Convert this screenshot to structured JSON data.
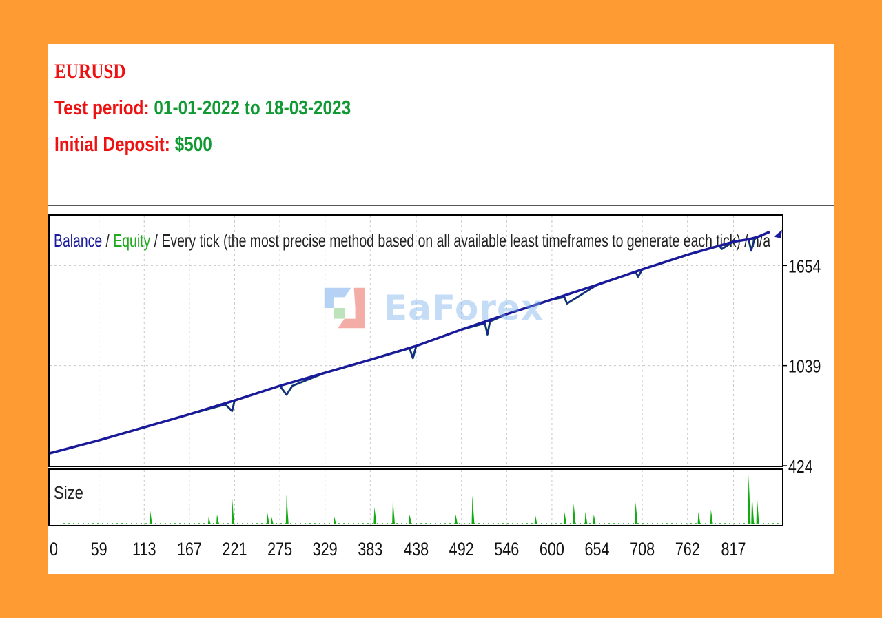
{
  "header": {
    "symbol": "EURUSD",
    "period_label": "Test period:",
    "period_value": "01-01-2022 to 18-03-2023",
    "deposit_label": "Initial Deposit:",
    "deposit_value": "$500"
  },
  "watermark": {
    "text": "EaForex"
  },
  "colors": {
    "background": "#ff9b33",
    "balance": "#1a1a9a",
    "equity": "#22aa22",
    "size": "#11aa11"
  },
  "chart_data": {
    "type": "line",
    "legend": {
      "balance": "Balance",
      "separator1": " / ",
      "equity": "Equity",
      "rest": " / Every tick (the most precise method based on all available least timeframes to generate each tick) / n/a"
    },
    "size_label": "Size",
    "x_ticks": [
      "0",
      "59",
      "113",
      "167",
      "221",
      "275",
      "329",
      "383",
      "438",
      "492",
      "546",
      "600",
      "654",
      "708",
      "762",
      "817"
    ],
    "y_ticks": [
      "424",
      "1039",
      "1654"
    ],
    "xlim": [
      0,
      875
    ],
    "ylim": [
      424,
      1960
    ],
    "grid": true,
    "series": [
      {
        "name": "Balance",
        "x": [
          0,
          59,
          113,
          167,
          221,
          275,
          329,
          383,
          438,
          492,
          546,
          600,
          654,
          708,
          762,
          817,
          835,
          845,
          860
        ],
        "values": [
          500,
          580,
          660,
          740,
          825,
          915,
          995,
          1075,
          1160,
          1260,
          1355,
          1445,
          1535,
          1630,
          1720,
          1800,
          1815,
          1828,
          1860
        ]
      },
      {
        "name": "Equity",
        "x": [
          0,
          59,
          113,
          167,
          210,
          218,
          221,
          275,
          283,
          290,
          329,
          383,
          430,
          434,
          438,
          492,
          520,
          523,
          526,
          546,
          600,
          615,
          618,
          654,
          700,
          703,
          708,
          762,
          800,
          803,
          817,
          835,
          838,
          842,
          845,
          860
        ],
        "values": [
          500,
          580,
          660,
          740,
          800,
          760,
          825,
          915,
          860,
          915,
          995,
          1075,
          1145,
          1085,
          1160,
          1260,
          1300,
          1230,
          1310,
          1355,
          1445,
          1460,
          1420,
          1535,
          1615,
          1585,
          1630,
          1720,
          1775,
          1755,
          1800,
          1815,
          1745,
          1815,
          1828,
          1860
        ]
      }
    ],
    "size_spikes": {
      "x": [
        120,
        190,
        200,
        218,
        260,
        265,
        283,
        340,
        388,
        410,
        430,
        485,
        505,
        580,
        615,
        626,
        640,
        650,
        700,
        775,
        790,
        835,
        839,
        845
      ],
      "values": [
        0.3,
        0.15,
        0.2,
        0.55,
        0.25,
        0.15,
        0.6,
        0.15,
        0.35,
        0.5,
        0.2,
        0.2,
        0.58,
        0.2,
        0.25,
        0.42,
        0.25,
        0.2,
        0.45,
        0.25,
        0.3,
        1.0,
        0.62,
        0.58
      ]
    }
  }
}
